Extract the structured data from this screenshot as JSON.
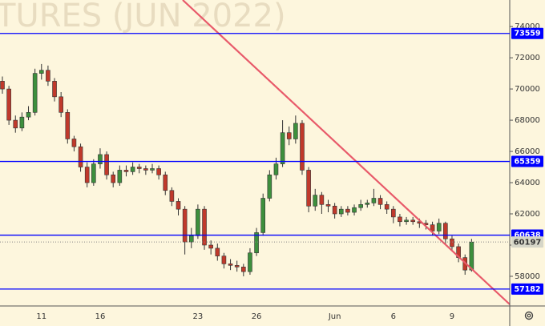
{
  "chart_data": {
    "type": "candlestick",
    "watermark": "TURES (JUN 2022)",
    "categories": [
      null,
      null,
      null,
      null,
      null,
      null,
      "11",
      null,
      null,
      null,
      null,
      null,
      null,
      null,
      null,
      "16",
      null,
      null,
      null,
      null,
      null,
      null,
      null,
      null,
      null,
      null,
      null,
      null,
      null,
      null,
      "23",
      null,
      null,
      null,
      null,
      null,
      null,
      null,
      null,
      "26",
      null,
      null,
      null,
      null,
      null,
      null,
      null,
      null,
      null,
      null,
      null,
      "Jun",
      null,
      null,
      null,
      null,
      null,
      null,
      null,
      null,
      "6",
      null,
      null,
      null,
      null,
      null,
      null,
      null,
      null,
      "9",
      null,
      null,
      null
    ],
    "open": [
      70500,
      70000,
      68000,
      67500,
      68200,
      68500,
      71000,
      71200,
      70500,
      69500,
      68500,
      66800,
      66300,
      65000,
      64000,
      65200,
      65800,
      64500,
      64000,
      64800,
      64700,
      65000,
      64900,
      64800,
      64900,
      64500,
      63500,
      62800,
      62300,
      60200,
      60600,
      62300,
      60000,
      59800,
      59300,
      58800,
      58700,
      58600,
      58300,
      59500,
      60800,
      63000,
      64500,
      65200,
      67200,
      66800,
      67800,
      64800,
      62500,
      63200,
      62600,
      62500,
      62000,
      62300,
      62100,
      62400,
      62600,
      62700,
      63000,
      62600,
      62300,
      61800,
      61500,
      61600,
      61500,
      61400,
      61300,
      60900,
      61400,
      60400,
      59900,
      59200,
      58400
    ],
    "high": [
      70800,
      70200,
      68300,
      68500,
      68900,
      71300,
      71600,
      71500,
      70700,
      69800,
      68700,
      67000,
      66500,
      65300,
      65500,
      66200,
      66000,
      64700,
      65100,
      65100,
      65300,
      65200,
      65100,
      65200,
      65100,
      64700,
      63700,
      63000,
      62500,
      61100,
      62600,
      62500,
      60300,
      60100,
      59500,
      59100,
      59000,
      58800,
      59800,
      61100,
      63300,
      64800,
      65600,
      68000,
      67600,
      68300,
      68000,
      65000,
      63600,
      63400,
      62900,
      62700,
      62500,
      62500,
      62600,
      62900,
      62900,
      63600,
      63200,
      62800,
      62500,
      62000,
      61800,
      61800,
      61700,
      61600,
      61500,
      61700,
      61500,
      60600,
      60100,
      59400,
      60400
    ],
    "low": [
      69700,
      67700,
      67200,
      67300,
      68000,
      68300,
      70600,
      70200,
      69200,
      68200,
      66500,
      66000,
      64700,
      63700,
      63800,
      64900,
      64200,
      63700,
      63800,
      64400,
      64500,
      64600,
      64500,
      64600,
      64200,
      63200,
      62500,
      61900,
      59400,
      59800,
      60400,
      59700,
      59400,
      59000,
      58500,
      58400,
      58300,
      58000,
      58100,
      59300,
      60600,
      62800,
      64200,
      65000,
      66400,
      66500,
      64500,
      62100,
      62200,
      62000,
      62100,
      61700,
      61800,
      61900,
      61900,
      62200,
      62400,
      62500,
      62300,
      62000,
      61400,
      61200,
      61300,
      61300,
      61100,
      61000,
      60600,
      60700,
      60100,
      59600,
      58900,
      58100,
      58300
    ],
    "close": [
      70000,
      68000,
      67500,
      68200,
      68500,
      71000,
      71200,
      70500,
      69500,
      68500,
      66800,
      66300,
      65000,
      64000,
      65200,
      65800,
      64500,
      64000,
      64800,
      64700,
      65000,
      64900,
      64800,
      64900,
      64500,
      63500,
      62800,
      62300,
      60200,
      60600,
      62300,
      60000,
      59800,
      59300,
      58800,
      58700,
      58600,
      58300,
      59500,
      60800,
      63000,
      64500,
      65200,
      67200,
      66800,
      67800,
      64800,
      62500,
      63200,
      62600,
      62500,
      62000,
      62300,
      62100,
      62400,
      62600,
      62700,
      63000,
      62600,
      62300,
      61800,
      61500,
      61600,
      61500,
      61400,
      61300,
      60900,
      61400,
      60400,
      59900,
      59200,
      58400,
      60197
    ],
    "up_color": "#3d8f3d",
    "down_color": "#c0392b",
    "wick_color": "#333333",
    "levels": [
      73559,
      65359,
      60638,
      57182
    ],
    "level_color": "#0000ff",
    "ylim": [
      56100,
      75700
    ],
    "yticks": [
      58000,
      60000,
      62000,
      64000,
      66000,
      68000,
      70000,
      72000,
      74000
    ]
  }
}
